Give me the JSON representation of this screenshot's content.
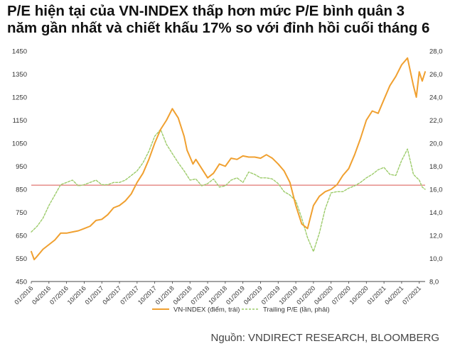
{
  "title_line1": "P/E hiện tại của VN-INDEX thấp hơn mức P/E bình quân 3",
  "title_line2": "năm gần nhất và chiết khấu 17% so với đỉnh hồi cuối tháng 6",
  "source": "Nguồn: VNDIRECT RESEARCH, BLOOMBERG",
  "colors": {
    "vnindex": "#F0A030",
    "pe": "#9CCB6A",
    "ref_line": "#D9534F",
    "axis": "#444444",
    "grid": "#cccccc"
  },
  "chart_data": {
    "type": "line",
    "x_tick_labels": [
      "01/2016",
      "04/2016",
      "07/2016",
      "10/2016",
      "01/2017",
      "04/2017",
      "07/2017",
      "10/2017",
      "01/2018",
      "04/2018",
      "07/2018",
      "10/2018",
      "01/2019",
      "04/2019",
      "07/2019",
      "10/2019",
      "01/2020",
      "04/2020",
      "07/2020",
      "10/2020",
      "01/2021",
      "04/2021",
      "07/2021"
    ],
    "x_range_months": [
      0,
      67
    ],
    "y_left": {
      "label": "VN-INDEX (điểm, trái)",
      "min": 450,
      "max": 1450,
      "ticks": [
        "1450",
        "1350",
        "1250",
        "1150",
        "1050",
        "950",
        "850",
        "750",
        "650",
        "550",
        "450"
      ]
    },
    "y_right": {
      "label": "Trailing P/E (lần, phải)",
      "min": 8.0,
      "max": 28.0,
      "ticks": [
        "28,0",
        "26,0",
        "24,0",
        "22,0",
        "20,0",
        "18,0",
        "16,0",
        "14,0",
        "12,0",
        "10,0",
        "8,0"
      ]
    },
    "reference_line": {
      "axis": "left",
      "value": 868
    },
    "series": [
      {
        "name": "VN-INDEX (điểm, trái)",
        "axis": "left",
        "style": "solid",
        "x": [
          0,
          0.5,
          1,
          2,
          3,
          4,
          5,
          6,
          7,
          8,
          9,
          10,
          11,
          12,
          13,
          14,
          15,
          16,
          17,
          18,
          19,
          20,
          21,
          22,
          23,
          24,
          25,
          26,
          26.5,
          27,
          27.5,
          28,
          29,
          30,
          31,
          32,
          33,
          34,
          35,
          36,
          37,
          38,
          39,
          40,
          41,
          42,
          43,
          44,
          45,
          46,
          47,
          48,
          49,
          50,
          51,
          52,
          53,
          54,
          55,
          56,
          57,
          58,
          59,
          60,
          61,
          62,
          63,
          64,
          65,
          65.5,
          66,
          66.5,
          67
        ],
        "values": [
          580,
          545,
          560,
          590,
          610,
          630,
          660,
          660,
          665,
          670,
          680,
          690,
          715,
          720,
          740,
          770,
          780,
          800,
          830,
          880,
          920,
          980,
          1050,
          1110,
          1150,
          1200,
          1160,
          1080,
          1020,
          990,
          960,
          980,
          940,
          900,
          920,
          960,
          950,
          985,
          980,
          995,
          990,
          990,
          985,
          1000,
          985,
          960,
          930,
          880,
          780,
          700,
          680,
          780,
          820,
          840,
          850,
          870,
          910,
          940,
          1000,
          1070,
          1150,
          1190,
          1180,
          1240,
          1300,
          1340,
          1390,
          1420,
          1300,
          1250,
          1360,
          1320,
          1360
        ]
      },
      {
        "name": "Trailing P/E (lần, phải)",
        "axis": "right",
        "style": "dashed",
        "x": [
          0,
          1,
          2,
          3,
          4,
          5,
          6,
          7,
          8,
          9,
          10,
          11,
          12,
          13,
          14,
          15,
          16,
          17,
          18,
          19,
          20,
          21,
          22,
          23,
          24,
          25,
          26,
          27,
          28,
          29,
          30,
          31,
          32,
          33,
          34,
          35,
          36,
          37,
          38,
          39,
          40,
          41,
          42,
          43,
          44,
          45,
          46,
          47,
          48,
          49,
          50,
          51,
          52,
          53,
          54,
          55,
          56,
          57,
          58,
          59,
          60,
          61,
          62,
          63,
          64,
          65,
          66,
          66.5,
          67
        ],
        "values": [
          12.3,
          12.8,
          13.5,
          14.6,
          15.5,
          16.4,
          16.6,
          16.8,
          16.3,
          16.4,
          16.6,
          16.8,
          16.4,
          16.4,
          16.6,
          16.6,
          16.8,
          17.2,
          17.6,
          18.3,
          19.3,
          20.6,
          21.2,
          19.9,
          19.1,
          18.3,
          17.6,
          16.8,
          16.9,
          16.3,
          16.5,
          16.9,
          16.2,
          16.3,
          16.8,
          17.0,
          16.6,
          17.5,
          17.3,
          17.0,
          17.0,
          16.9,
          16.5,
          15.8,
          15.5,
          15.0,
          13.5,
          11.8,
          10.6,
          12.2,
          14.3,
          15.7,
          15.8,
          15.8,
          16.1,
          16.3,
          16.6,
          17.0,
          17.3,
          17.7,
          17.9,
          17.3,
          17.2,
          18.5,
          19.5,
          17.3,
          16.8,
          16.2,
          16.0
        ]
      }
    ]
  }
}
